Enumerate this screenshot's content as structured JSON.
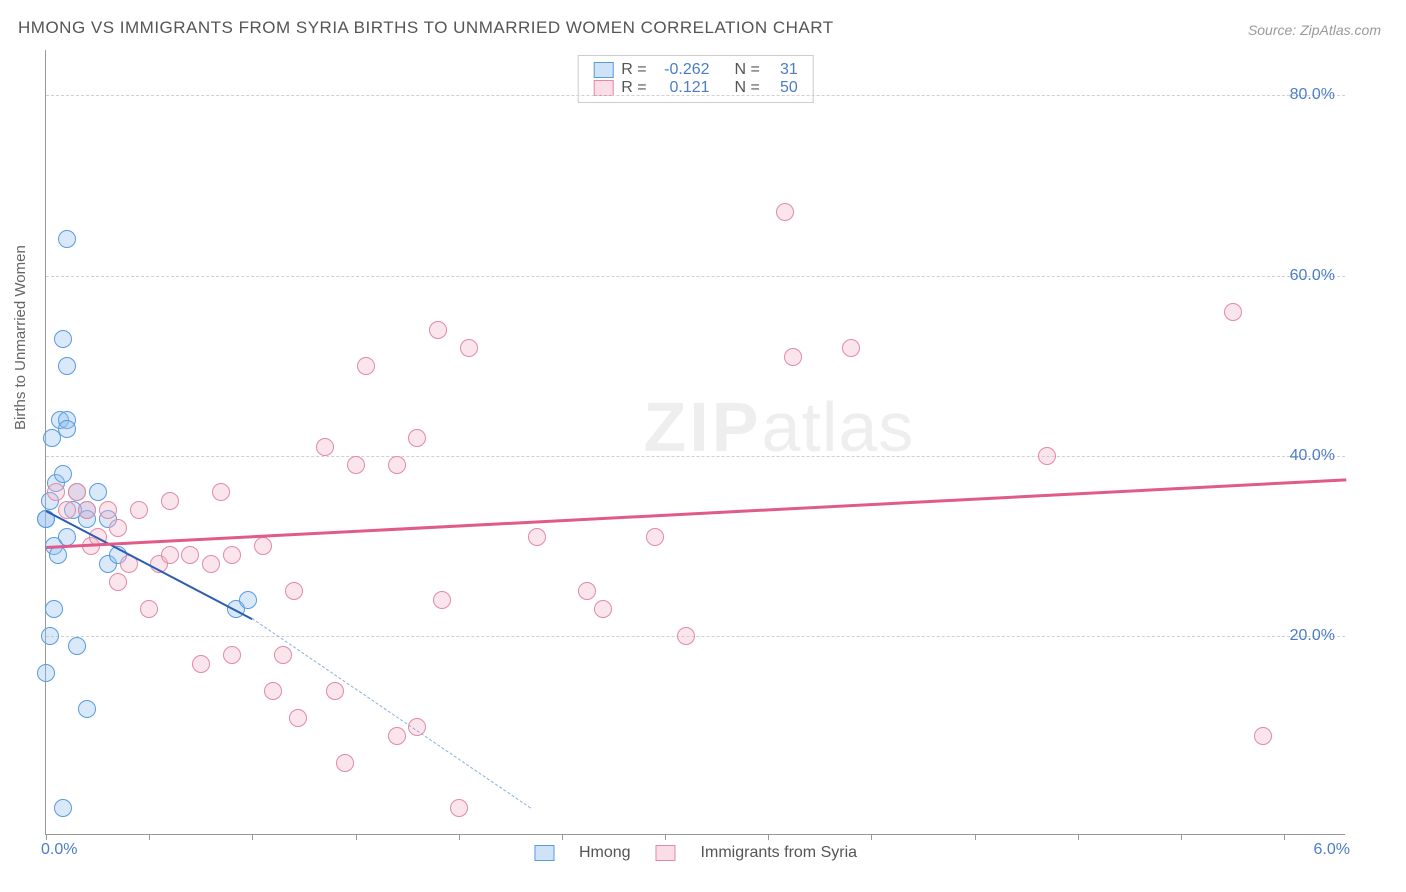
{
  "title": "HMONG VS IMMIGRANTS FROM SYRIA BIRTHS TO UNMARRIED WOMEN CORRELATION CHART",
  "source_label": "Source:",
  "source_name": "ZipAtlas.com",
  "ylabel": "Births to Unmarried Women",
  "watermark_bold": "ZIP",
  "watermark_light": "atlas",
  "chart": {
    "type": "scatter",
    "xlim": [
      0,
      6.3
    ],
    "ylim": [
      -2,
      85
    ],
    "x_ticks": [
      0,
      0.5,
      1.0,
      1.5,
      2.0,
      2.5,
      3.0,
      3.5,
      4.0,
      4.5,
      5.0,
      5.5,
      6.0
    ],
    "x_tick_labels": {
      "0": "0.0%",
      "6": "6.0%"
    },
    "y_gridlines": [
      20,
      40,
      60,
      80
    ],
    "y_tick_labels": [
      "20.0%",
      "40.0%",
      "60.0%",
      "80.0%"
    ],
    "background_color": "#ffffff",
    "grid_color": "#d0d0d0",
    "axis_color": "#999999",
    "tick_label_color": "#4a7dc9",
    "marker_size": 18,
    "series": [
      {
        "name": "Hmong",
        "label": "Hmong",
        "fill_color": "rgba(147,193,240,0.35)",
        "stroke_color": "#5a9bdc",
        "r_label": "R =",
        "r_value": "-0.262",
        "n_label": "N =",
        "n_value": "31",
        "trend": {
          "segments": [
            {
              "x1": 0.0,
              "y1": 34.0,
              "x2": 1.0,
              "y2": 22.0,
              "style": "solid",
              "color": "#2a5db0",
              "width": 2
            },
            {
              "x1": 1.0,
              "y1": 22.0,
              "x2": 2.35,
              "y2": 1.0,
              "style": "dashed",
              "color": "#8ab0dd",
              "width": 1.5
            }
          ]
        },
        "points": [
          [
            0.0,
            33
          ],
          [
            0.02,
            35
          ],
          [
            0.04,
            30
          ],
          [
            0.05,
            37
          ],
          [
            0.06,
            29
          ],
          [
            0.08,
            53
          ],
          [
            0.1,
            50
          ],
          [
            0.1,
            64
          ],
          [
            0.07,
            44
          ],
          [
            0.1,
            44
          ],
          [
            0.1,
            43
          ],
          [
            0.08,
            38
          ],
          [
            0.0,
            16
          ],
          [
            0.02,
            20
          ],
          [
            0.04,
            23
          ],
          [
            0.15,
            19
          ],
          [
            0.2,
            12
          ],
          [
            0.08,
            1
          ],
          [
            0.0,
            33
          ],
          [
            0.3,
            33
          ],
          [
            0.3,
            28
          ],
          [
            0.2,
            34
          ],
          [
            0.25,
            36
          ],
          [
            0.35,
            29
          ],
          [
            0.92,
            23
          ],
          [
            0.98,
            24
          ],
          [
            0.15,
            36
          ],
          [
            0.2,
            33
          ],
          [
            0.1,
            31
          ],
          [
            0.13,
            34
          ],
          [
            0.03,
            42
          ]
        ]
      },
      {
        "name": "Immigrants from Syria",
        "label": "Immigrants from Syria",
        "fill_color": "rgba(244,180,200,0.35)",
        "stroke_color": "#e28aa5",
        "r_label": "R =",
        "r_value": "0.121",
        "n_label": "N =",
        "n_value": "50",
        "trend": {
          "segments": [
            {
              "x1": 0.0,
              "y1": 30.0,
              "x2": 6.3,
              "y2": 37.5,
              "style": "solid",
              "color": "#e05a8a",
              "width": 2.5
            }
          ]
        },
        "points": [
          [
            0.05,
            36
          ],
          [
            0.1,
            34
          ],
          [
            0.15,
            36
          ],
          [
            0.2,
            34
          ],
          [
            0.22,
            30
          ],
          [
            0.25,
            31
          ],
          [
            0.3,
            34
          ],
          [
            0.35,
            32
          ],
          [
            0.45,
            34
          ],
          [
            0.4,
            28
          ],
          [
            0.35,
            26
          ],
          [
            0.5,
            23
          ],
          [
            0.55,
            28
          ],
          [
            0.6,
            35
          ],
          [
            0.7,
            29
          ],
          [
            0.8,
            28
          ],
          [
            0.85,
            36
          ],
          [
            0.75,
            17
          ],
          [
            0.9,
            18
          ],
          [
            0.9,
            29
          ],
          [
            1.05,
            30
          ],
          [
            1.1,
            14
          ],
          [
            1.15,
            18
          ],
          [
            1.2,
            25
          ],
          [
            1.22,
            11
          ],
          [
            1.35,
            41
          ],
          [
            1.4,
            14
          ],
          [
            1.45,
            6
          ],
          [
            1.5,
            39
          ],
          [
            1.55,
            50
          ],
          [
            1.7,
            9
          ],
          [
            1.7,
            39
          ],
          [
            1.8,
            42
          ],
          [
            1.8,
            10
          ],
          [
            1.9,
            54
          ],
          [
            1.92,
            24
          ],
          [
            2.05,
            52
          ],
          [
            2.0,
            1
          ],
          [
            2.38,
            31
          ],
          [
            2.62,
            25
          ],
          [
            2.7,
            23
          ],
          [
            2.95,
            31
          ],
          [
            3.58,
            67
          ],
          [
            3.62,
            51
          ],
          [
            3.1,
            20
          ],
          [
            4.85,
            40
          ],
          [
            5.75,
            56
          ],
          [
            5.9,
            9
          ],
          [
            0.6,
            29
          ],
          [
            3.9,
            52
          ]
        ]
      }
    ]
  }
}
